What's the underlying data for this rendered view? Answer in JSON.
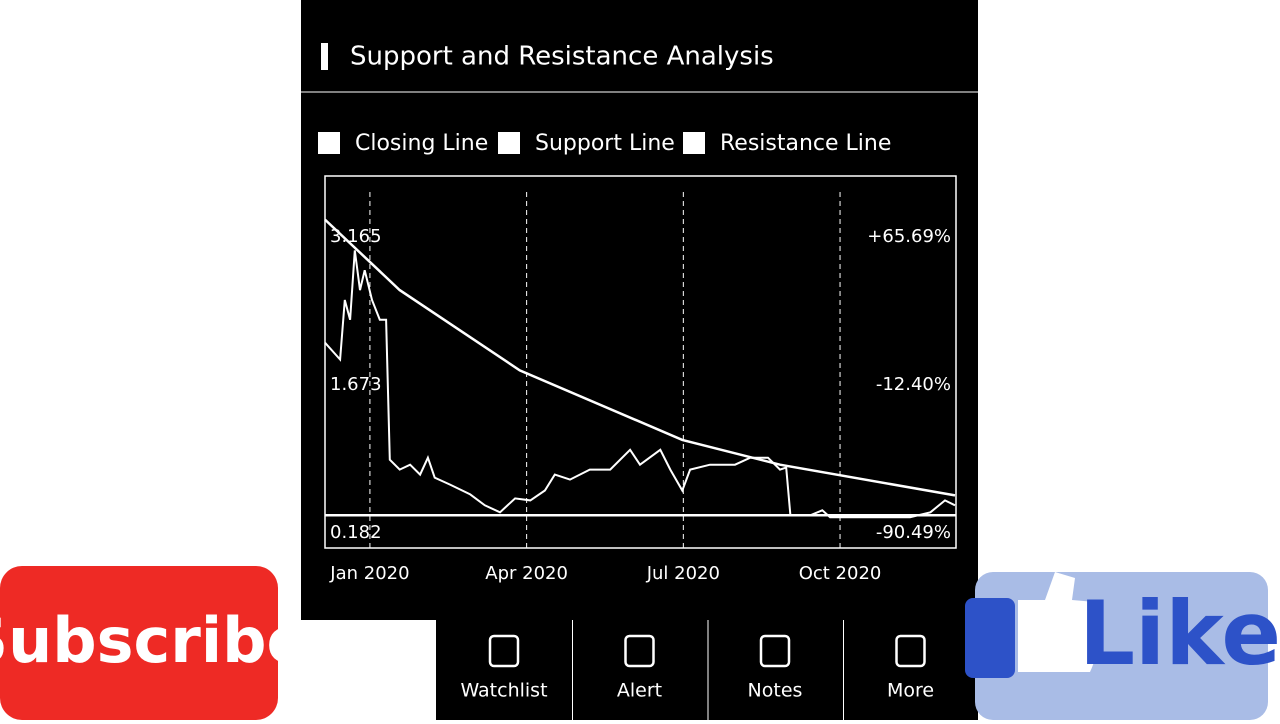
{
  "header": {
    "title": "Support and Resistance Analysis"
  },
  "chart_data": {
    "type": "line",
    "xlim": [
      -0.86,
      11.22
    ],
    "xticks": [
      {
        "value": 0,
        "label": "Jan 2020"
      },
      {
        "value": 3,
        "label": "Apr 2020"
      },
      {
        "value": 6,
        "label": "Jul 2020"
      },
      {
        "value": 9,
        "label": "Oct 2020"
      }
    ],
    "ylim": [
      0.03,
      3.78
    ],
    "yticks": [
      3.165,
      1.673,
      0.182
    ],
    "y2lim": [
      -98.43,
      97.89
    ],
    "y2ticks": [
      {
        "value": 65.69,
        "label": "+65.69%"
      },
      {
        "value": -12.4,
        "label": "-12.40%"
      },
      {
        "value": -90.49,
        "label": "-90.49%"
      }
    ],
    "grid": true,
    "series": [
      {
        "name": "Closing Line",
        "color": "#ffffff",
        "x": [
          -0.86,
          -0.57,
          -0.48,
          -0.38,
          -0.29,
          -0.19,
          -0.1,
          0.04,
          0.19,
          0.31,
          0.38,
          0.57,
          0.77,
          0.96,
          1.11,
          1.24,
          1.53,
          1.92,
          2.2,
          2.49,
          2.78,
          3.07,
          3.35,
          3.54,
          3.83,
          4.21,
          4.6,
          4.98,
          5.17,
          5.56,
          5.75,
          5.98,
          6.13,
          6.51,
          6.99,
          7.28,
          7.62,
          7.85,
          7.97,
          8.05,
          8.43,
          8.66,
          8.81,
          9.58,
          10.34,
          10.73,
          11.01,
          11.2
        ],
        "values": [
          2.1,
          1.93,
          2.53,
          2.33,
          3.03,
          2.63,
          2.83,
          2.53,
          2.33,
          2.33,
          0.92,
          0.82,
          0.87,
          0.77,
          0.94,
          0.74,
          0.67,
          0.57,
          0.46,
          0.39,
          0.53,
          0.51,
          0.61,
          0.77,
          0.72,
          0.82,
          0.82,
          1.02,
          0.87,
          1.02,
          0.82,
          0.61,
          0.82,
          0.87,
          0.87,
          0.94,
          0.94,
          0.82,
          0.84,
          0.36,
          0.36,
          0.41,
          0.34,
          0.34,
          0.34,
          0.39,
          0.51,
          0.46
        ]
      },
      {
        "name": "Support Line",
        "color": "#ffffff",
        "x": [
          -0.86,
          11.22
        ],
        "values": [
          0.36,
          0.36
        ]
      },
      {
        "name": "Resistance Line",
        "color": "#ffffff",
        "x": [
          -0.86,
          0.57,
          2.87,
          5.98,
          7.85,
          11.2
        ],
        "values": [
          3.34,
          2.63,
          1.82,
          1.12,
          0.87,
          0.56
        ]
      }
    ]
  },
  "nav": {
    "tabs": [
      "Watchlist",
      "Alert",
      "Notes",
      "More"
    ]
  },
  "overlays": {
    "subscribe": "Subscribe",
    "like": "Like"
  }
}
